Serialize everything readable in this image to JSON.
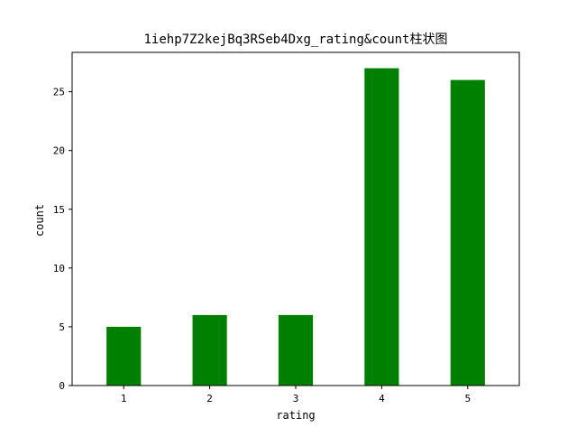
{
  "colors": {
    "bar": "#008000",
    "axis": "#000000",
    "background": "#ffffff"
  },
  "chart_data": {
    "type": "bar",
    "title": "1iehp7Z2kejBq3RSeb4Dxg_rating&count柱状图",
    "xlabel": "rating",
    "ylabel": "count",
    "categories": [
      "1",
      "2",
      "3",
      "4",
      "5"
    ],
    "values": [
      5,
      6,
      6,
      27,
      26
    ],
    "ylim": [
      0,
      28.35
    ],
    "yticks": [
      0,
      5,
      10,
      15,
      20,
      25
    ],
    "grid": false,
    "legend": "none"
  }
}
